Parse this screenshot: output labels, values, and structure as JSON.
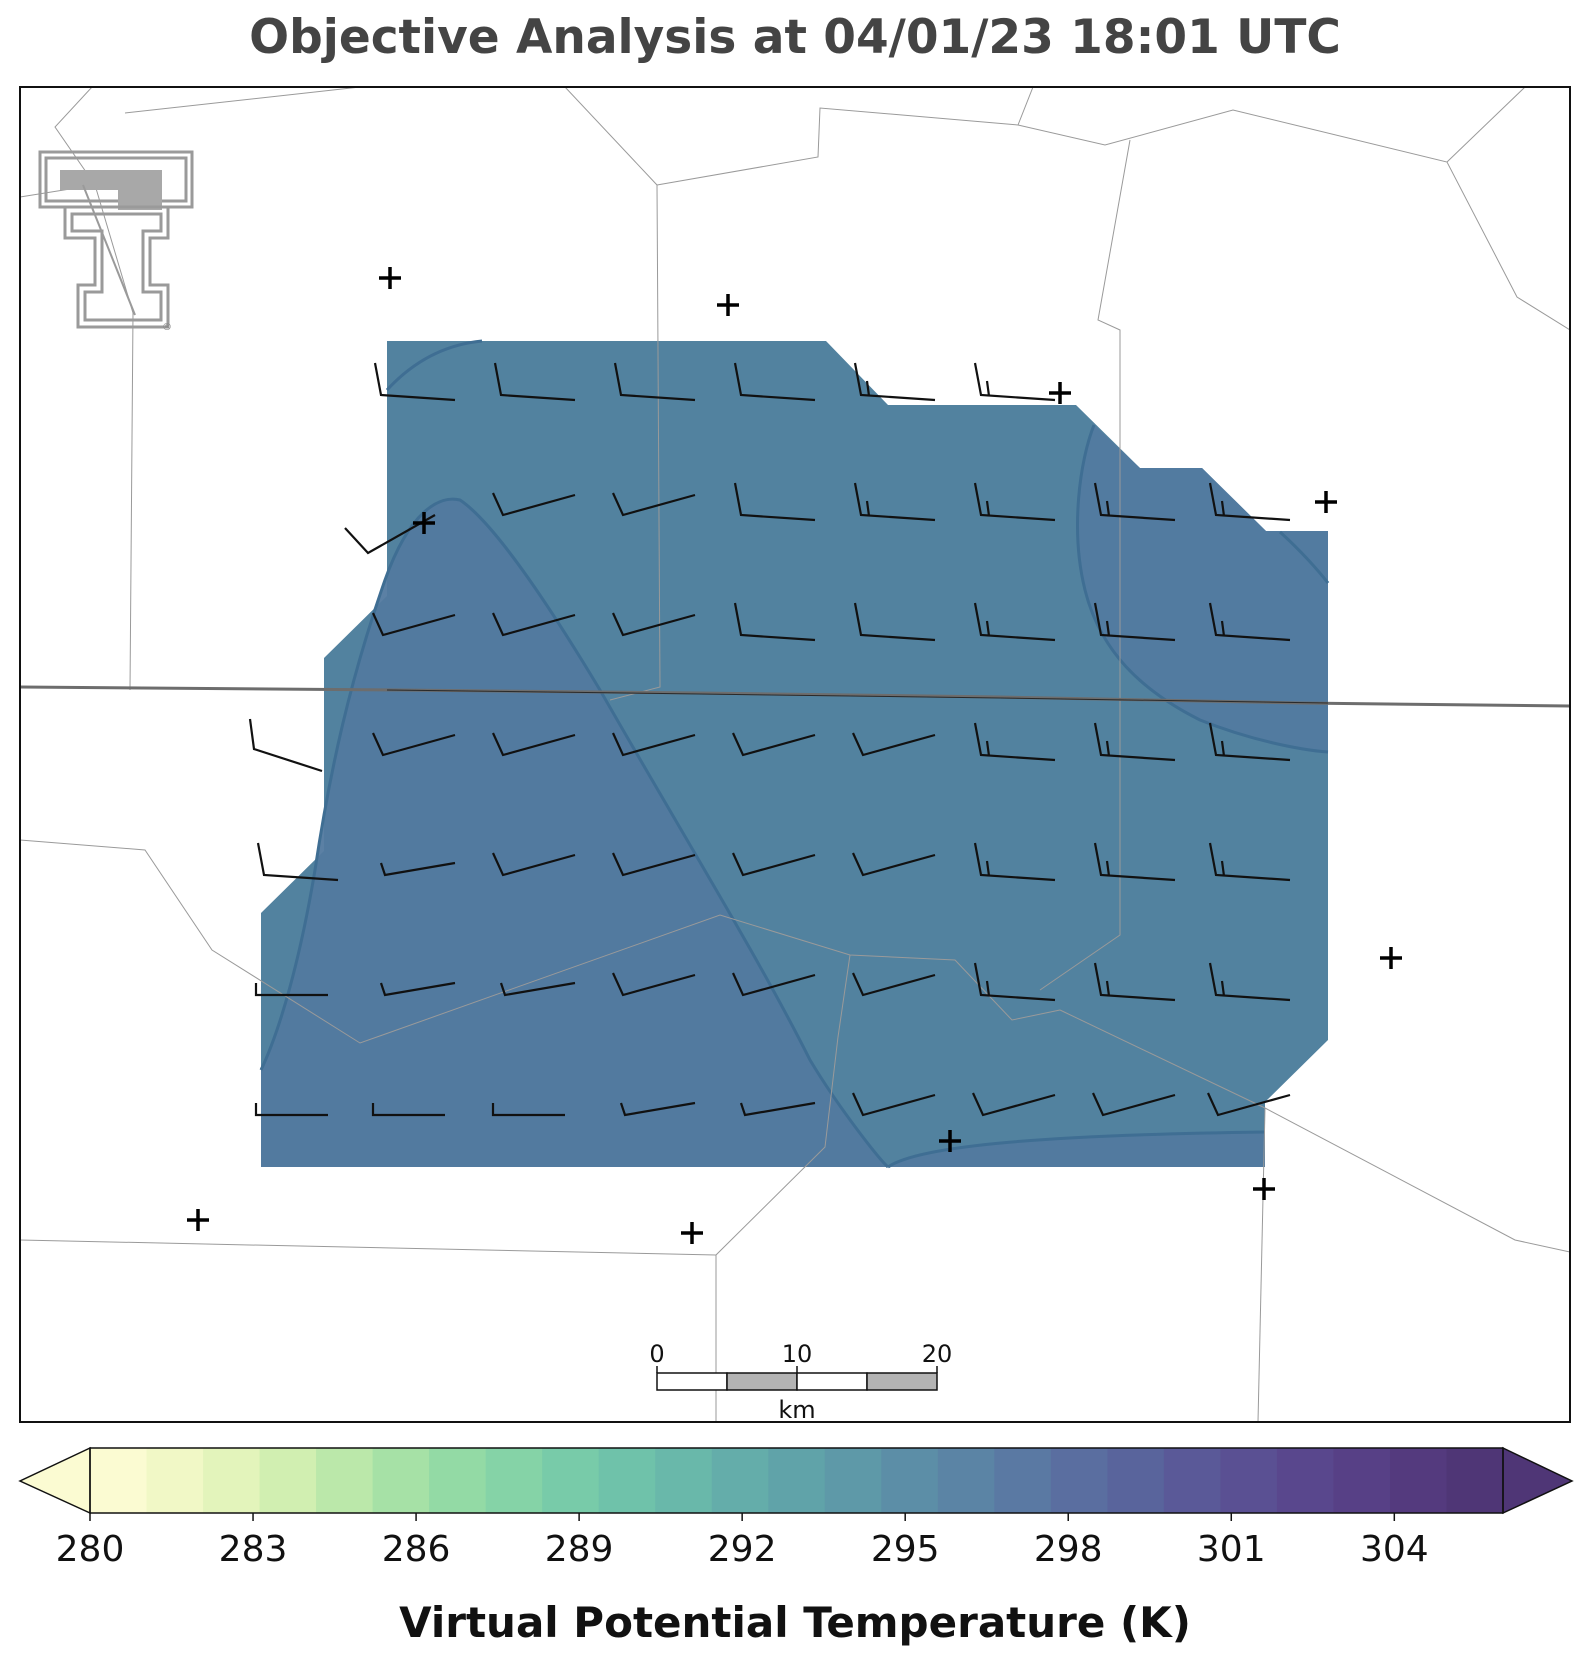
{
  "title": "Objective Analysis at 04/01/23 18:01 UTC",
  "colorbar": {
    "label": "Virtual Potential Temperature (K)",
    "min": 280,
    "max": 306,
    "ticks": [
      "280",
      "283",
      "286",
      "289",
      "292",
      "295",
      "298",
      "301",
      "304"
    ],
    "tick_values": [
      280,
      283,
      286,
      289,
      292,
      295,
      298,
      301,
      304
    ],
    "colors": [
      "#fbfbd2",
      "#f1f8c6",
      "#e3f4bb",
      "#d1efb1",
      "#bbe8aa",
      "#a6e1a6",
      "#93daa5",
      "#85d3a7",
      "#78cba9",
      "#6fc2aa",
      "#69b8aa",
      "#64adaa",
      "#60a3a9",
      "#5e99a8",
      "#5c8ea7",
      "#5b84a5",
      "#5a79a3",
      "#5a6ea0",
      "#59649c",
      "#5a5998",
      "#5a5093",
      "#59478d",
      "#574086",
      "#543a7e",
      "#4f3676"
    ],
    "extend": "both"
  },
  "analysis_field": {
    "variable": "Virtual Potential Temperature",
    "units": "K",
    "west_region_color": "#52799f",
    "east_region_color": "#52829f",
    "northeast_region_color": "#527aa0"
  },
  "scale_bar": {
    "ticks": [
      "0",
      "10",
      "20"
    ],
    "units": "km"
  },
  "logo": {
    "name": "double-t-logo",
    "mark": "®"
  },
  "stations_count": 12,
  "wind_barbs_count": 61
}
